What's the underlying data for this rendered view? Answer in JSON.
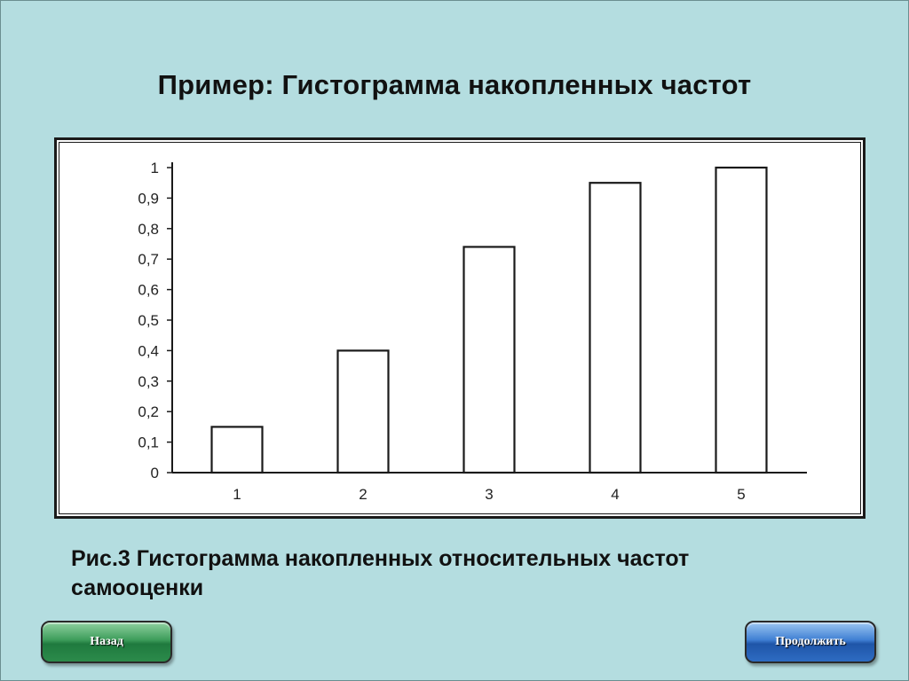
{
  "slide": {
    "title": "Пример: Гистограмма накопленных частот",
    "caption_line1": "Рис.3 Гистограмма накопленных относительных частот",
    "caption_line2": "самооценки"
  },
  "navigation": {
    "back_label": "Назад",
    "next_label": "Продолжить"
  },
  "colors": {
    "background": "#b4dde0",
    "bar_fill": "#ffffff",
    "bar_stroke": "#1a1a1a",
    "back_button": "#2c8b4b",
    "next_button": "#2e6cc2"
  },
  "chart_data": {
    "type": "bar",
    "categories": [
      "1",
      "2",
      "3",
      "4",
      "5"
    ],
    "values": [
      0.15,
      0.4,
      0.74,
      0.95,
      1.0
    ],
    "yticks": [
      "0",
      "0,1",
      "0,2",
      "0,3",
      "0,4",
      "0,5",
      "0,6",
      "0,7",
      "0,8",
      "0,9",
      "1"
    ],
    "ylim": [
      0,
      1
    ],
    "title": "",
    "xlabel": "",
    "ylabel": "",
    "grid": false,
    "legend": "none"
  }
}
